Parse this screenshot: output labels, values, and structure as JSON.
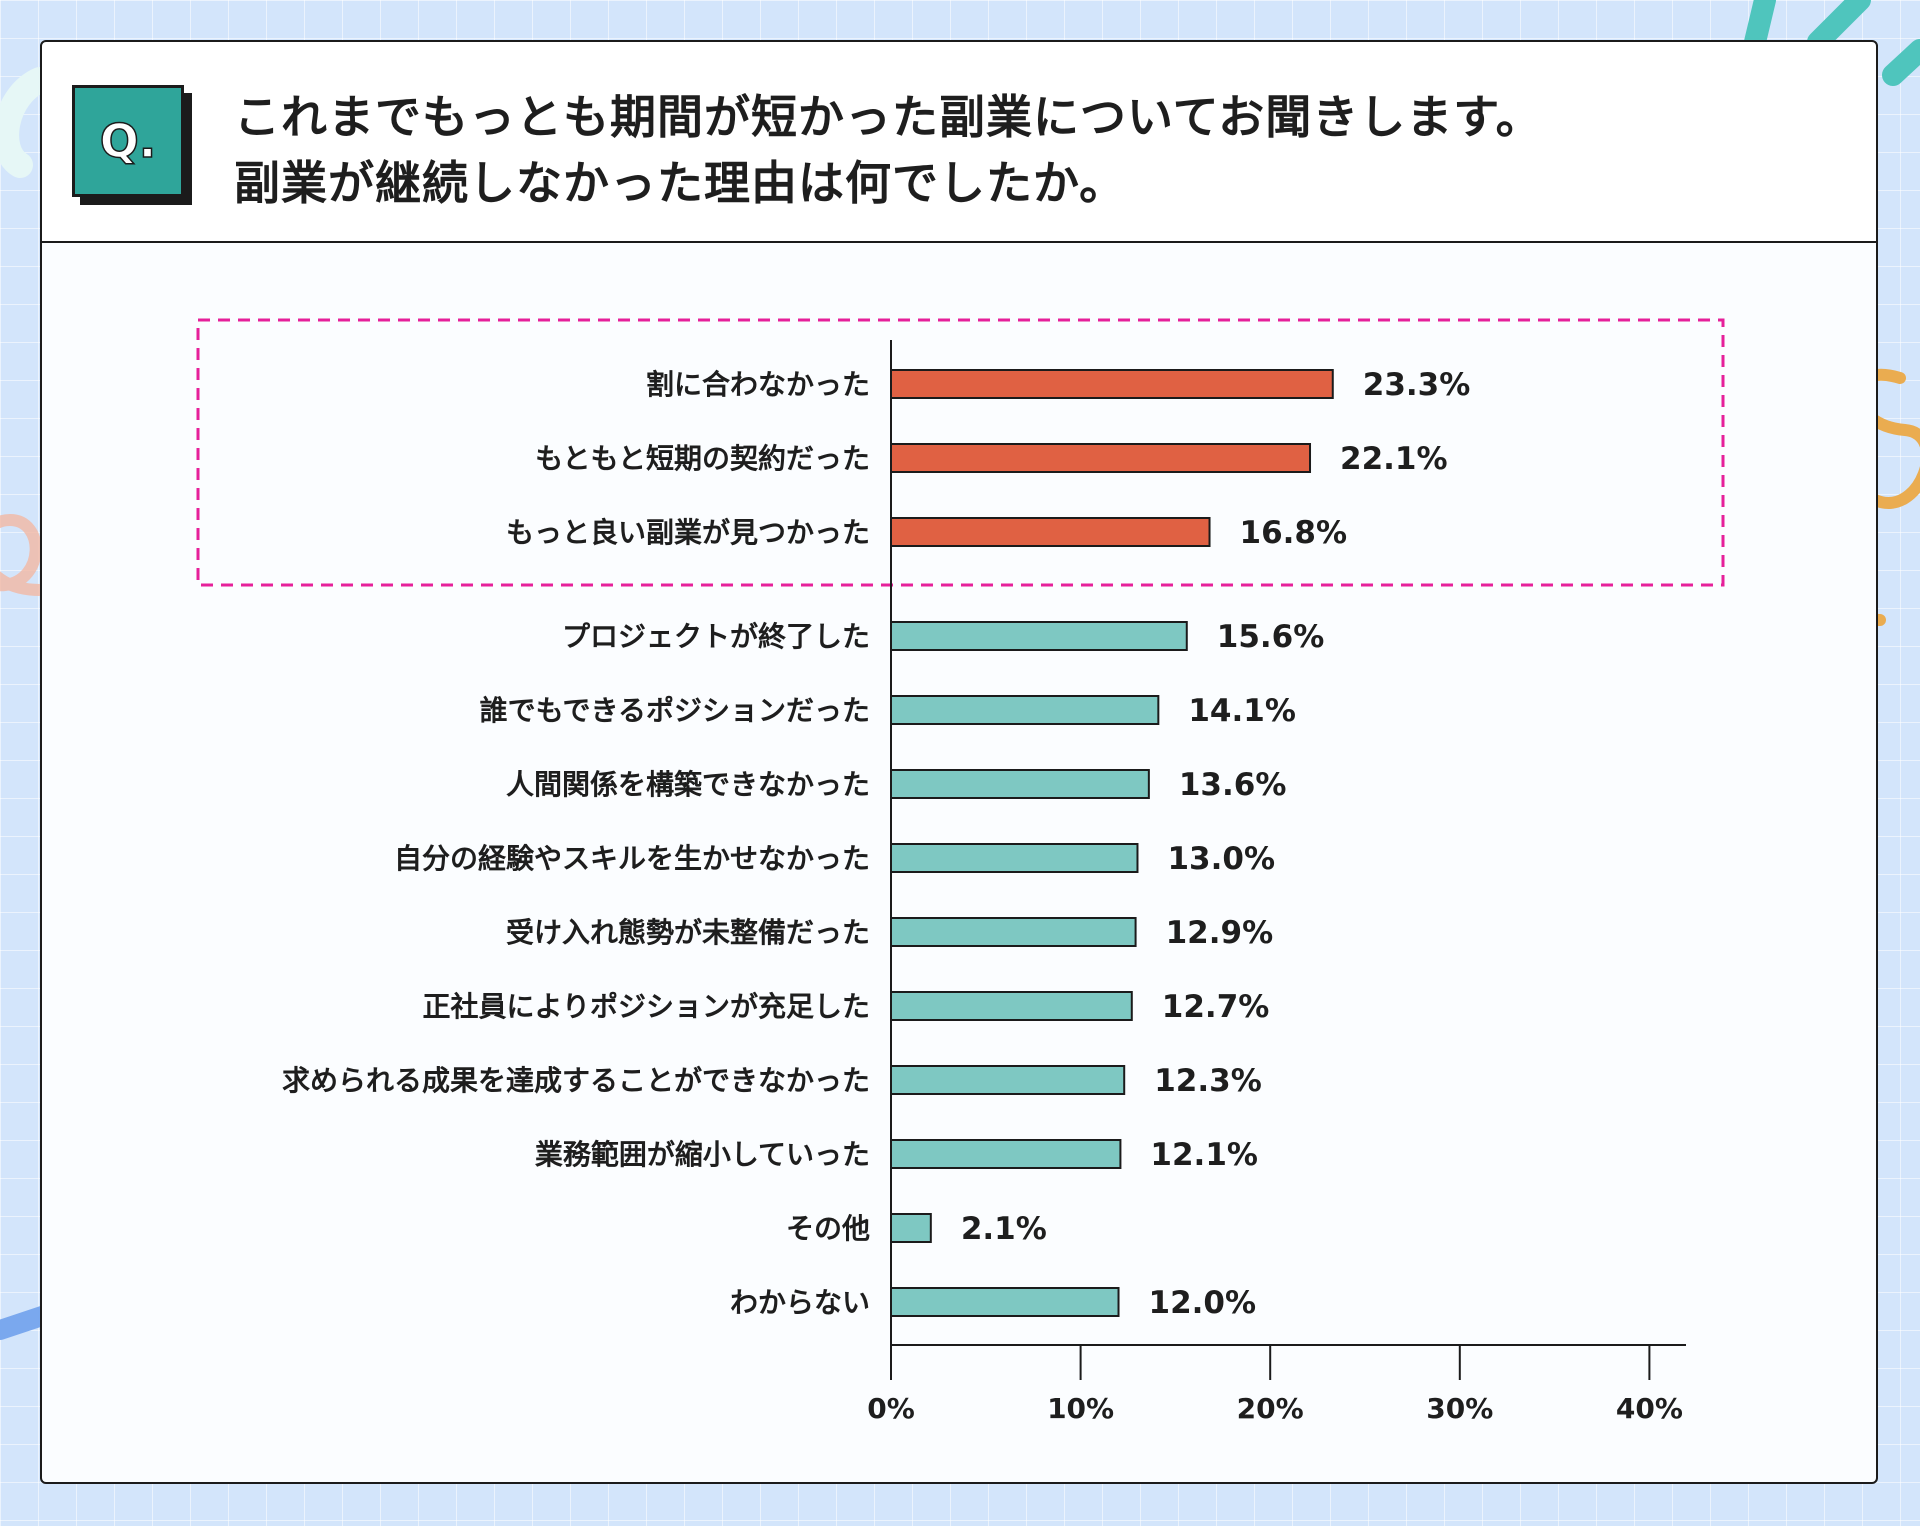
{
  "question": {
    "badge": "Q.",
    "lines": [
      "これまでもっとも期間が短かった副業についてお聞きします。",
      "副業が継続しなかった理由は何でしたか。"
    ]
  },
  "colors": {
    "highlight_bar": "#e06143",
    "bar": "#7ec8c2",
    "highlight_box": "#e6209a",
    "badge": "#2fa59a"
  },
  "chart_data": {
    "type": "bar",
    "orientation": "horizontal",
    "categories": [
      "割に合わなかった",
      "もともと短期の契約だった",
      "もっと良い副業が見つかった",
      "プロジェクトが終了した",
      "誰でもできるポジションだった",
      "人間関係を構築できなかった",
      "自分の経験やスキルを生かせなかった",
      "受け入れ態勢が未整備だった",
      "正社員によりポジションが充足した",
      "求められる成果を達成することができなかった",
      "業務範囲が縮小していった",
      "その他",
      "わからない"
    ],
    "values": [
      23.3,
      22.1,
      16.8,
      15.6,
      14.1,
      13.6,
      13.0,
      12.9,
      12.7,
      12.3,
      12.1,
      2.1,
      12.0
    ],
    "value_labels": [
      "23.3%",
      "22.1%",
      "16.8%",
      "15.6%",
      "14.1%",
      "13.6%",
      "13.0%",
      "12.9%",
      "12.7%",
      "12.3%",
      "12.1%",
      "2.1%",
      "12.0%"
    ],
    "highlighted_count": 3,
    "xlim": [
      0,
      40
    ],
    "xticks": [
      0,
      10,
      20,
      30,
      40
    ],
    "xtick_labels": [
      "0%",
      "10%",
      "20%",
      "30%",
      "40%"
    ],
    "grid": false
  }
}
